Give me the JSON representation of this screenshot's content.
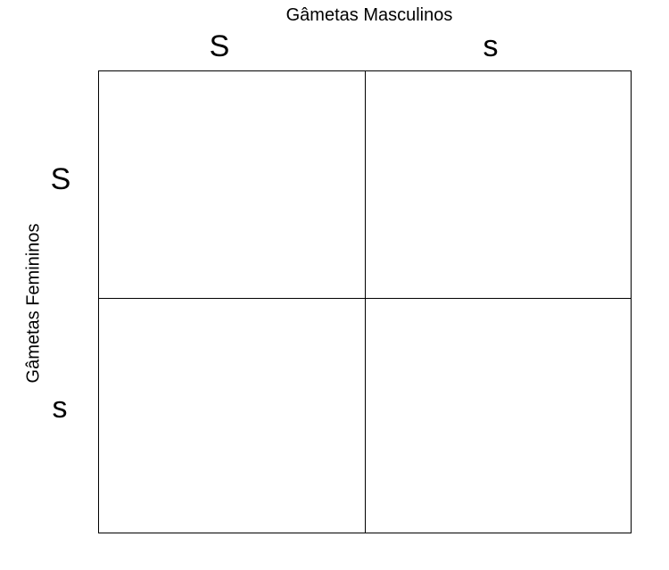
{
  "male_gametes": {
    "title": "Gâmetas Masculinos",
    "alleles": [
      "S",
      "s"
    ]
  },
  "female_gametes": {
    "title": "Gâmetas Femininos",
    "alleles": [
      "S",
      "s"
    ]
  },
  "cells": [
    "",
    "",
    "",
    ""
  ]
}
